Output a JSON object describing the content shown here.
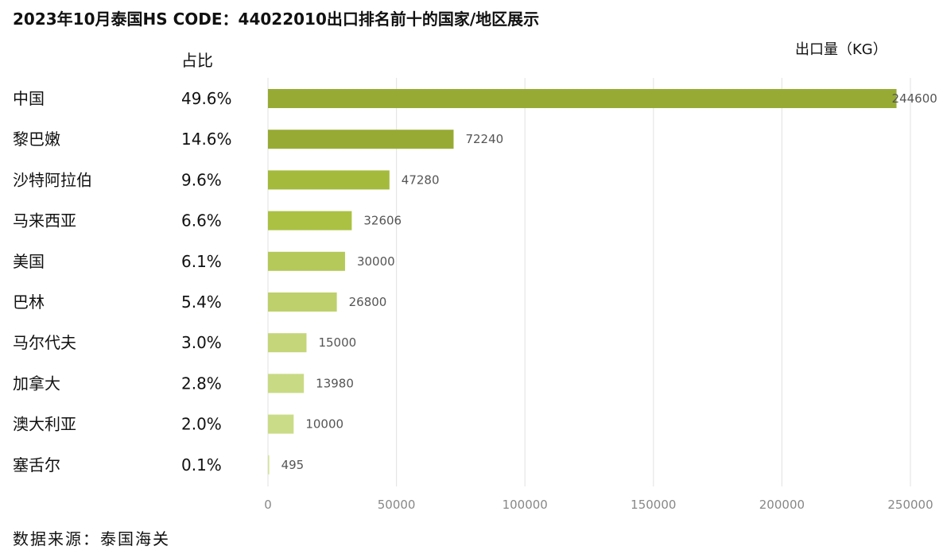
{
  "title": "2023年10月泰国HS CODE：44022010出口排名前十的国家/地区展示",
  "unit_label": "出口量（KG）",
  "share_header": "占比",
  "source": "数据来源：泰国海关",
  "chart_data": {
    "type": "bar",
    "orientation": "horizontal",
    "categories": [
      "中国",
      "黎巴嫩",
      "沙特阿拉伯",
      "马来西亚",
      "美国",
      "巴林",
      "马尔代夫",
      "加拿大",
      "澳大利亚",
      "塞舌尔"
    ],
    "values": [
      244600,
      72240,
      47280,
      32606,
      30000,
      26800,
      15000,
      13980,
      10000,
      495
    ],
    "shares": [
      "49.6%",
      "14.6%",
      "9.6%",
      "6.6%",
      "6.1%",
      "5.4%",
      "3.0%",
      "2.8%",
      "2.0%",
      "0.1%"
    ],
    "value_labels": [
      "244600",
      "72240",
      "47280",
      "32606",
      "30000",
      "26800",
      "15000",
      "13980",
      "10000",
      "495"
    ],
    "bar_colors": [
      "#97ab34",
      "#97ab34",
      "#a3ba3c",
      "#abc143",
      "#b5c95a",
      "#bdd06c",
      "#c5d67a",
      "#c9da84",
      "#cadc88",
      "#d3e29b"
    ],
    "xlim": [
      0,
      250000
    ],
    "xticks": [
      0,
      50000,
      100000,
      150000,
      200000,
      250000
    ],
    "xtick_labels": [
      "0",
      "50000",
      "100000",
      "150000",
      "200000",
      "250000"
    ],
    "grid": true
  }
}
